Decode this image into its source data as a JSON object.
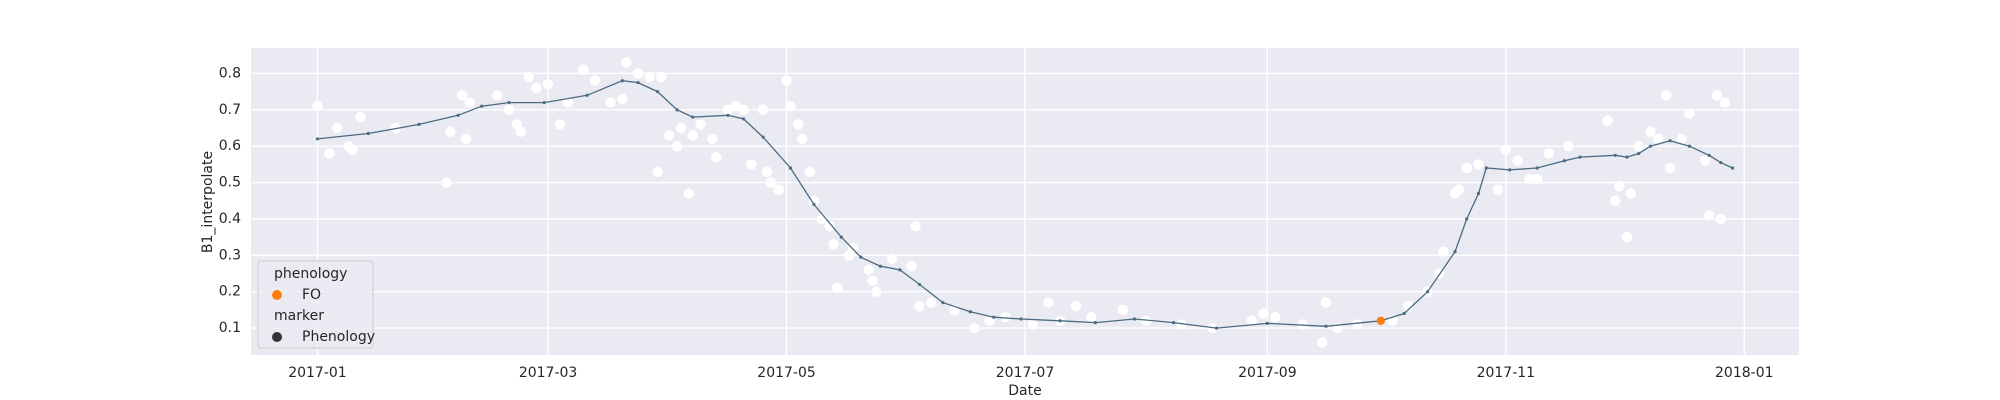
{
  "chart_data": {
    "type": "line",
    "xlabel": "Date",
    "ylabel": "B1_interpolate",
    "xlim": [
      17150,
      17546
    ],
    "ylim": [
      0.026,
      0.87
    ],
    "xticks": [
      {
        "value": 17167,
        "label": "2017-01"
      },
      {
        "value": 17226,
        "label": "2017-03"
      },
      {
        "value": 17287,
        "label": "2017-05"
      },
      {
        "value": 17348,
        "label": "2017-07"
      },
      {
        "value": 17410,
        "label": "2017-09"
      },
      {
        "value": 17471,
        "label": "2017-11"
      },
      {
        "value": 17532,
        "label": "2018-01"
      }
    ],
    "yticks": [
      0.1,
      0.2,
      0.3,
      0.4,
      0.5,
      0.6,
      0.7,
      0.8
    ],
    "grid": true,
    "scatter": {
      "color": "#ffffff",
      "x": [
        17167,
        17170,
        17172,
        17175,
        17176,
        17178,
        17187,
        17200,
        17201,
        17204,
        17205,
        17206,
        17213,
        17216,
        17218,
        17219,
        17221,
        17223,
        17226,
        17229,
        17231,
        17235,
        17238,
        17242,
        17245,
        17246,
        17249,
        17252,
        17254,
        17255,
        17257,
        17259,
        17260,
        17262,
        17263,
        17265,
        17268,
        17269,
        17272,
        17274,
        17276,
        17278,
        17281,
        17282,
        17283,
        17285,
        17287,
        17288,
        17290,
        17291,
        17293,
        17294,
        17296,
        17298,
        17299,
        17300,
        17303,
        17304,
        17308,
        17309,
        17310,
        17314,
        17319,
        17320,
        17321,
        17324,
        17330,
        17335,
        17339,
        17343,
        17350,
        17354,
        17357,
        17361,
        17365,
        17373,
        17379,
        17388,
        17396,
        17406,
        17409,
        17412,
        17419,
        17424,
        17425,
        17428,
        17433,
        17442,
        17446,
        17451,
        17454,
        17455,
        17458,
        17459,
        17461,
        17464,
        17469,
        17471,
        17474,
        17477,
        17479,
        17482,
        17487,
        17497,
        17499,
        17500,
        17502,
        17503,
        17505,
        17508,
        17510,
        17512,
        17513,
        17516,
        17518,
        17522,
        17523,
        17525,
        17526,
        17527
      ],
      "values": [
        0.71,
        0.58,
        0.65,
        0.6,
        0.59,
        0.68,
        0.65,
        0.5,
        0.64,
        0.74,
        0.62,
        0.72,
        0.74,
        0.7,
        0.66,
        0.64,
        0.79,
        0.76,
        0.77,
        0.66,
        0.72,
        0.81,
        0.78,
        0.72,
        0.73,
        0.83,
        0.8,
        0.79,
        0.53,
        0.79,
        0.63,
        0.6,
        0.65,
        0.47,
        0.63,
        0.66,
        0.62,
        0.57,
        0.7,
        0.71,
        0.7,
        0.55,
        0.7,
        0.53,
        0.5,
        0.48,
        0.78,
        0.71,
        0.66,
        0.62,
        0.53,
        0.45,
        0.4,
        0.38,
        0.33,
        0.21,
        0.3,
        0.32,
        0.26,
        0.23,
        0.2,
        0.29,
        0.27,
        0.38,
        0.16,
        0.17,
        0.15,
        0.1,
        0.12,
        0.13,
        0.11,
        0.17,
        0.12,
        0.16,
        0.13,
        0.15,
        0.12,
        0.11,
        0.1,
        0.12,
        0.14,
        0.13,
        0.11,
        0.06,
        0.17,
        0.1,
        0.11,
        0.12,
        0.16,
        0.2,
        0.25,
        0.31,
        0.47,
        0.48,
        0.54,
        0.55,
        0.48,
        0.59,
        0.56,
        0.51,
        0.51,
        0.58,
        0.6,
        0.67,
        0.45,
        0.49,
        0.35,
        0.47,
        0.6,
        0.64,
        0.62,
        0.74,
        0.54,
        0.62,
        0.69,
        0.56,
        0.41,
        0.74,
        0.4,
        0.72
      ]
    },
    "line": {
      "color": "#4a6b82",
      "x": [
        17167,
        17180,
        17193,
        17203,
        17209,
        17216,
        17225,
        17236,
        17245,
        17249,
        17254,
        17259,
        17263,
        17272,
        17276,
        17281,
        17288,
        17294,
        17301,
        17306,
        17311,
        17316,
        17321,
        17327,
        17334,
        17340,
        17347,
        17357,
        17366,
        17376,
        17386,
        17397,
        17410,
        17425,
        17439,
        17445,
        17451,
        17458,
        17461,
        17464,
        17466,
        17472,
        17479,
        17486,
        17490,
        17499,
        17502,
        17505,
        17508,
        17513,
        17518,
        17523,
        17526,
        17529
      ],
      "values": [
        0.62,
        0.635,
        0.66,
        0.685,
        0.71,
        0.72,
        0.72,
        0.74,
        0.78,
        0.775,
        0.75,
        0.7,
        0.68,
        0.685,
        0.675,
        0.625,
        0.54,
        0.44,
        0.35,
        0.295,
        0.27,
        0.26,
        0.22,
        0.17,
        0.145,
        0.13,
        0.125,
        0.12,
        0.115,
        0.125,
        0.115,
        0.1,
        0.113,
        0.105,
        0.12,
        0.14,
        0.2,
        0.31,
        0.4,
        0.47,
        0.54,
        0.535,
        0.54,
        0.56,
        0.57,
        0.575,
        0.57,
        0.58,
        0.6,
        0.615,
        0.6,
        0.575,
        0.555,
        0.54
      ]
    },
    "highlight": {
      "name": "FO",
      "color": "#ff7f0e",
      "x": [
        17439
      ],
      "values": [
        0.12
      ]
    },
    "legend": {
      "corner": "lower left",
      "hue_title": "phenology",
      "style_title": "marker",
      "style_label": "Phenology",
      "style_color": "#333333"
    }
  }
}
